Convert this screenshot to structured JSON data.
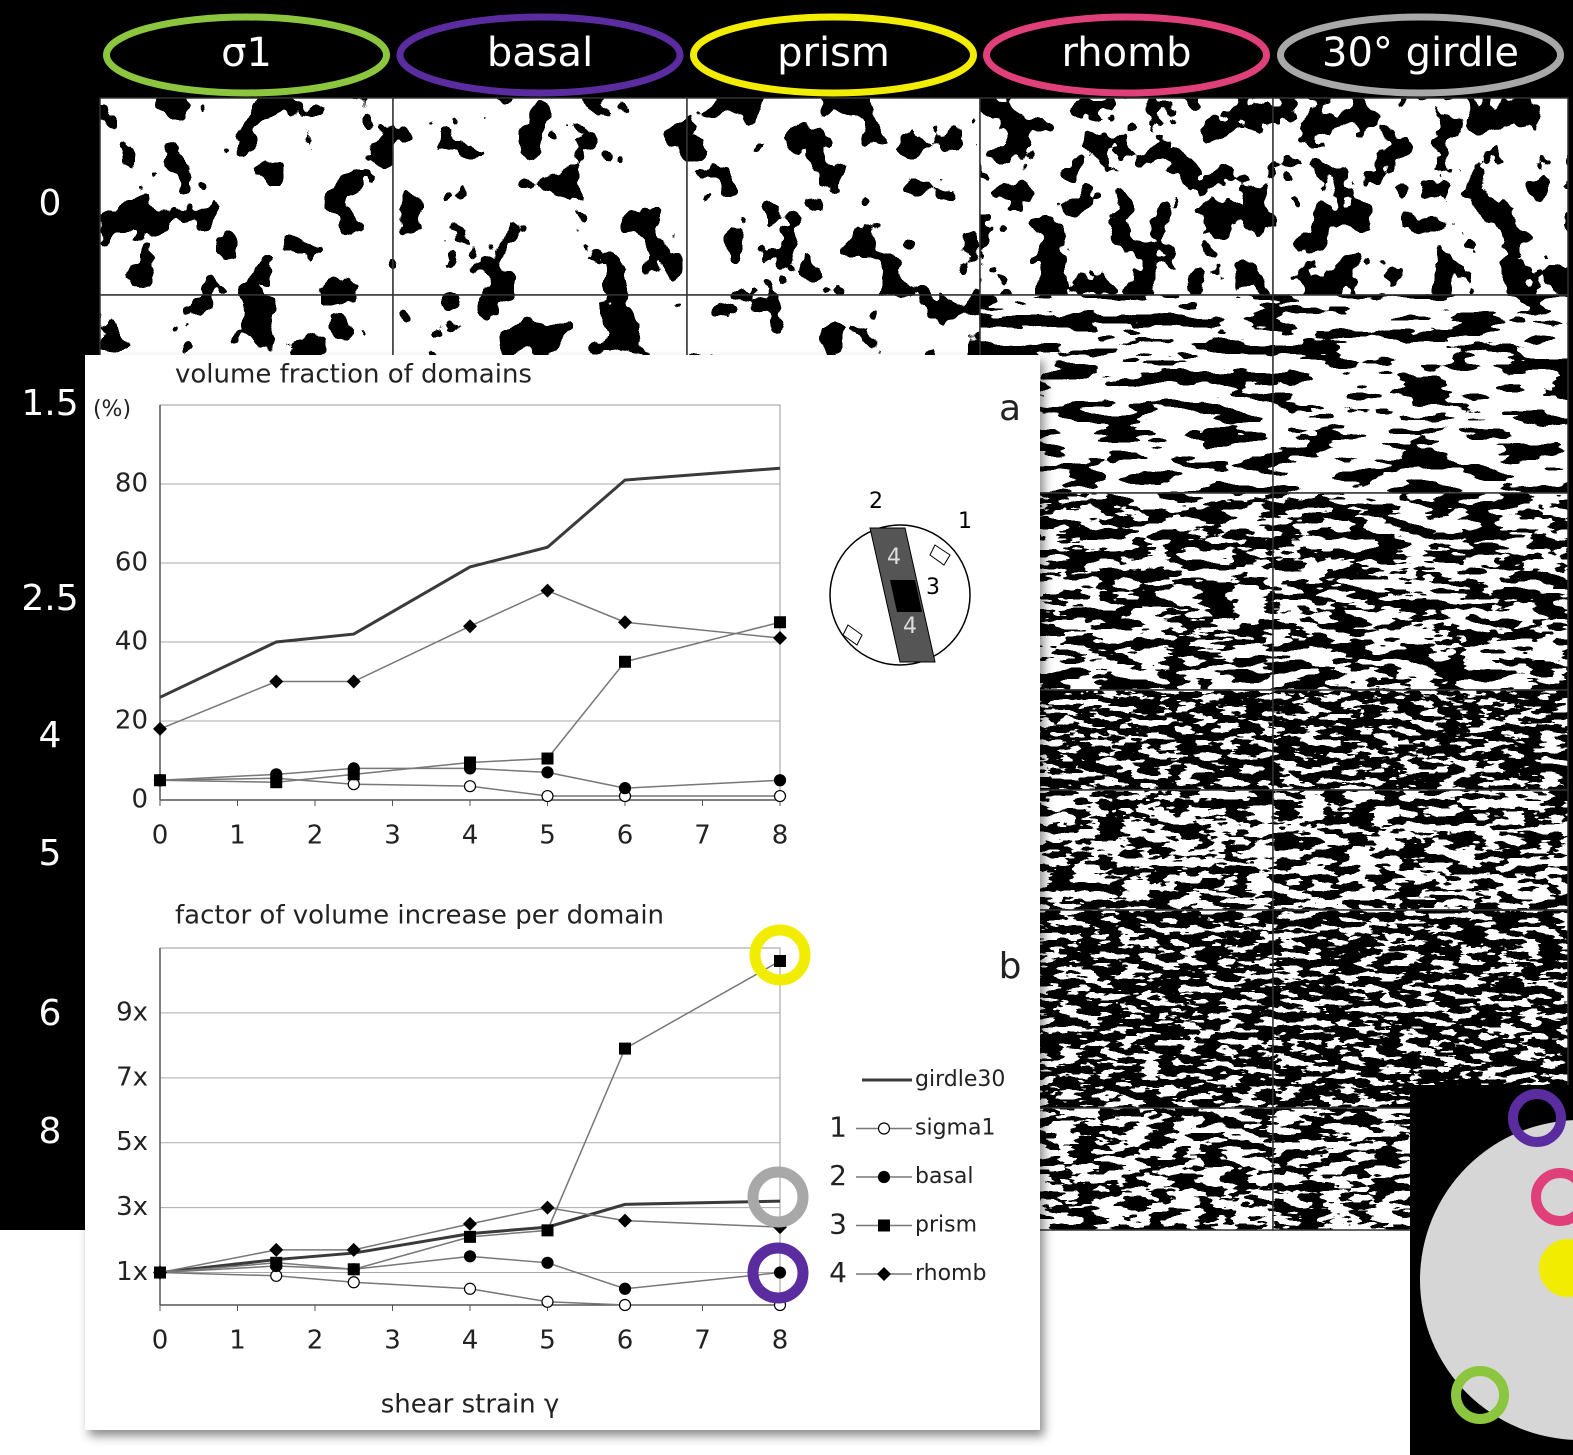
{
  "columns": [
    {
      "label": "σ1",
      "color": "#8cc63f"
    },
    {
      "label": "basal",
      "color": "#5b2ca0"
    },
    {
      "label": "prism",
      "color": "#f2ec00"
    },
    {
      "label": "rhomb",
      "color": "#e0407a"
    },
    {
      "label": "30° girdle",
      "color": "#a8a8a8"
    }
  ],
  "rows": [
    "0",
    "1.5",
    "2.5",
    "4",
    "5",
    "6",
    "8"
  ],
  "inset_labels": [
    "2",
    "1",
    "3",
    "4",
    "4"
  ],
  "chart_data": [
    {
      "type": "line",
      "title": "volume fraction of domains",
      "y_label": "(%)",
      "panel_label": "a",
      "x": [
        0,
        1.5,
        2.5,
        4,
        5,
        6,
        8
      ],
      "xlim": [
        0,
        8
      ],
      "xticks": [
        0,
        1,
        2,
        3,
        4,
        5,
        6,
        7,
        8
      ],
      "ylim": [
        0,
        100
      ],
      "yticks": [
        0,
        20,
        40,
        60,
        80
      ],
      "grid": true,
      "series": [
        {
          "color": "#3a3a3a",
          "marker": "none",
          "values": [
            26,
            40,
            42,
            59,
            64,
            81,
            84
          ]
        },
        {
          "color": "#777777",
          "marker": "circle-open",
          "values": [
            5,
            5.5,
            4,
            3.5,
            1,
            1,
            1
          ]
        },
        {
          "color": "#777777",
          "marker": "circle",
          "values": [
            5,
            6.5,
            8,
            8,
            7,
            3,
            5
          ]
        },
        {
          "color": "#777777",
          "marker": "square",
          "values": [
            5,
            4.5,
            6.5,
            9.5,
            10.5,
            35,
            45
          ]
        },
        {
          "color": "#777777",
          "marker": "diamond",
          "values": [
            18,
            30,
            30,
            44,
            53,
            45,
            41
          ]
        }
      ]
    },
    {
      "type": "line",
      "title": "factor of volume increase per domain",
      "x_label": "shear strain γ",
      "panel_label": "b",
      "x": [
        0,
        1.5,
        2.5,
        4,
        5,
        6,
        8
      ],
      "xlim": [
        0,
        8
      ],
      "xticks": [
        0,
        1,
        2,
        3,
        4,
        5,
        6,
        7,
        8
      ],
      "ylim": [
        0,
        11
      ],
      "yticks": [
        {
          "value": 1,
          "label": "1x"
        },
        {
          "value": 3,
          "label": "3x"
        },
        {
          "value": 5,
          "label": "5x"
        },
        {
          "value": 7,
          "label": "7x"
        },
        {
          "value": 9,
          "label": "9x"
        }
      ],
      "grid": true,
      "legend": true,
      "series": [
        {
          "name": "girdle30",
          "color": "#3a3a3a",
          "marker": "none",
          "values": [
            1,
            1.4,
            1.6,
            2.2,
            2.4,
            3.1,
            3.2
          ]
        },
        {
          "name": "sigma1",
          "number": "1",
          "color": "#777777",
          "marker": "circle-open",
          "values": [
            1,
            0.9,
            0.7,
            0.5,
            0.1,
            0,
            0
          ]
        },
        {
          "name": "basal",
          "number": "2",
          "color": "#777777",
          "marker": "circle",
          "values": [
            1,
            1.2,
            1.1,
            1.5,
            1.3,
            0.5,
            1
          ]
        },
        {
          "name": "prism",
          "number": "3",
          "color": "#777777",
          "marker": "square",
          "values": [
            1,
            1.3,
            1.1,
            2.1,
            2.3,
            7.9,
            10.6
          ]
        },
        {
          "name": "rhomb",
          "number": "4",
          "color": "#777777",
          "marker": "diamond",
          "values": [
            1,
            1.7,
            1.7,
            2.5,
            3.0,
            2.6,
            2.4
          ]
        }
      ]
    }
  ]
}
